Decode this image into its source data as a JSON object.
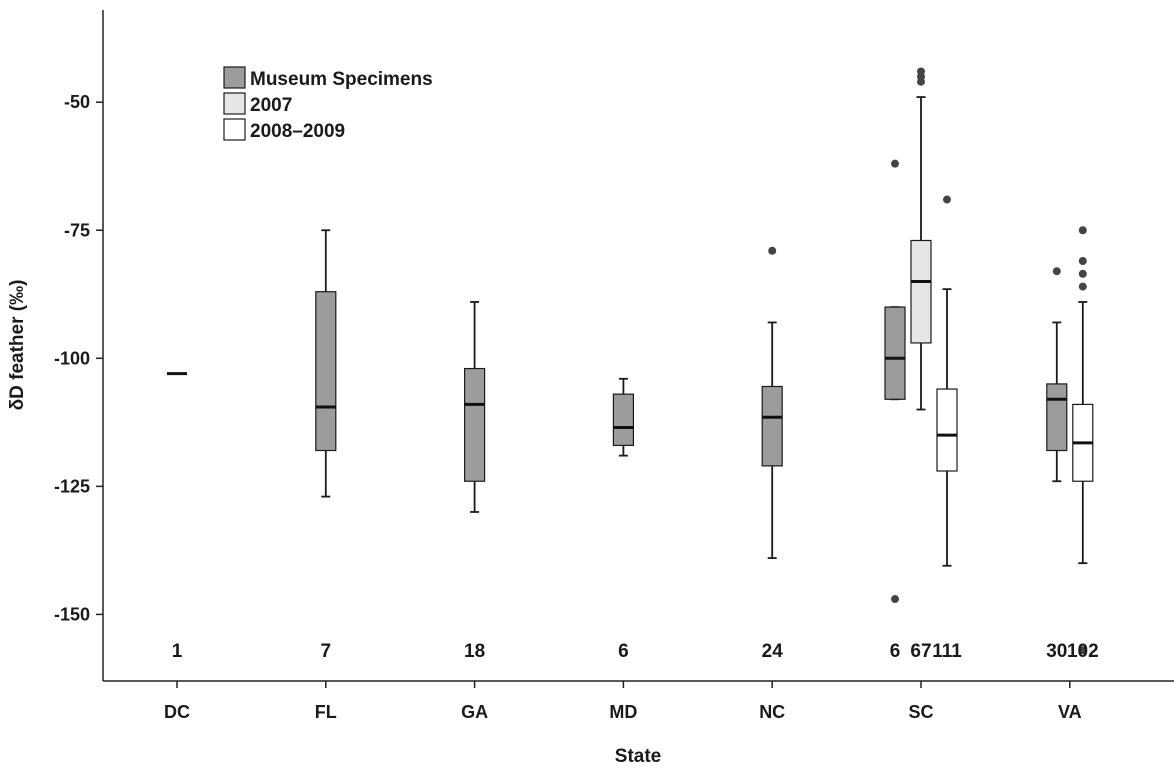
{
  "chart_data": {
    "type": "boxplot",
    "xlabel": "State",
    "ylabel": "δD feather (‰)",
    "ylim": [
      -163,
      -32
    ],
    "yticks": [
      -50,
      -75,
      -100,
      -125,
      -150
    ],
    "ytick_labels": [
      "-50",
      "-75",
      "-100",
      "-125",
      "-150"
    ],
    "categories": [
      "DC",
      "FL",
      "GA",
      "MD",
      "NC",
      "SC",
      "VA"
    ],
    "legend": {
      "placement": "top-left",
      "entries": [
        {
          "label": "Museum Specimens",
          "color": "#9c9c9e"
        },
        {
          "label": "2007",
          "color": "#e6e6e6"
        },
        {
          "label": "2008–2009",
          "color": "#ffffff"
        }
      ]
    },
    "series": [
      {
        "name": "Museum Specimens",
        "color": "#9c9c9e",
        "boxes": [
          {
            "category": "DC",
            "offset": 0,
            "n": "1",
            "median": -103,
            "q1": -103,
            "q3": -103,
            "whisker_low": -103,
            "whisker_high": -103,
            "outliers": []
          },
          {
            "category": "FL",
            "offset": 0,
            "n": "7",
            "median": -109.5,
            "q1": -118,
            "q3": -87,
            "whisker_low": -127,
            "whisker_high": -75,
            "outliers": []
          },
          {
            "category": "GA",
            "offset": 0,
            "n": "18",
            "median": -109,
            "q1": -124,
            "q3": -102,
            "whisker_low": -130,
            "whisker_high": -89,
            "outliers": []
          },
          {
            "category": "MD",
            "offset": 0,
            "n": "6",
            "median": -113.5,
            "q1": -117,
            "q3": -107,
            "whisker_low": -119,
            "whisker_high": -104,
            "outliers": []
          },
          {
            "category": "NC",
            "offset": 0,
            "n": "24",
            "median": -111.5,
            "q1": -121,
            "q3": -105.5,
            "whisker_low": -139,
            "whisker_high": -93,
            "outliers": [
              -79
            ]
          },
          {
            "category": "SC",
            "offset": -1,
            "n": "6",
            "median": -100,
            "q1": -108,
            "q3": -90,
            "whisker_low": -108,
            "whisker_high": -90,
            "outliers": [
              -62,
              -147
            ]
          },
          {
            "category": "VA",
            "offset": -0.5,
            "n": "30",
            "median": -108,
            "q1": -118,
            "q3": -105,
            "whisker_low": -124,
            "whisker_high": -93,
            "outliers": [
              -83
            ]
          }
        ]
      },
      {
        "name": "2007",
        "color": "#e6e6e6",
        "boxes": [
          {
            "category": "SC",
            "offset": 0,
            "n": "67",
            "median": -85,
            "q1": -97,
            "q3": -77,
            "whisker_low": -110,
            "whisker_high": -49,
            "outliers": [
              -44,
              -45,
              -46
            ]
          }
        ]
      },
      {
        "name": "2008–2009",
        "color": "#ffffff",
        "boxes": [
          {
            "category": "SC",
            "offset": 1,
            "n": "111",
            "median": -115,
            "q1": -122,
            "q3": -106,
            "whisker_low": -140.5,
            "whisker_high": -86.5,
            "outliers": [
              -69
            ]
          },
          {
            "category": "VA",
            "offset": 0.5,
            "n": "102",
            "median": -116.5,
            "q1": -124,
            "q3": -109,
            "whisker_low": -140,
            "whisker_high": -89,
            "outliers": [
              -75,
              -81,
              -83.5,
              -86,
              -157
            ]
          }
        ]
      }
    ]
  }
}
